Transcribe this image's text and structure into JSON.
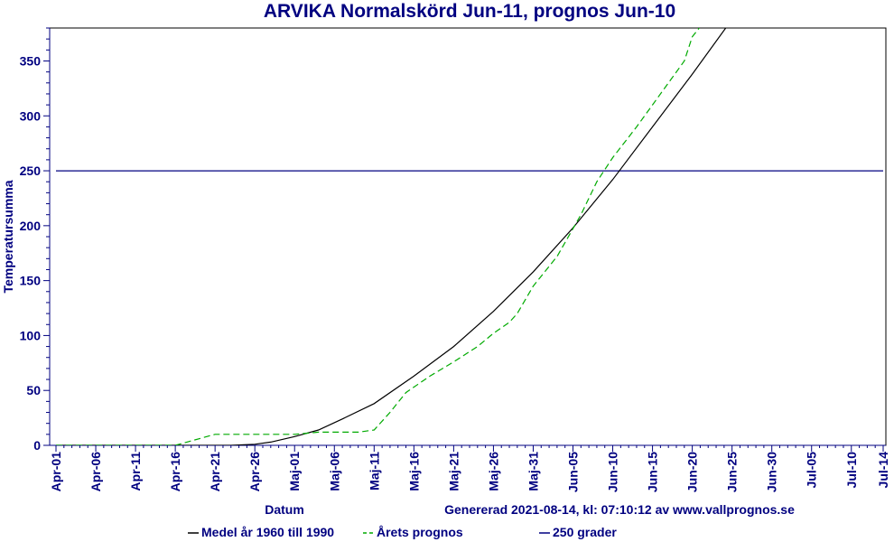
{
  "chart_data": {
    "type": "line",
    "title": "ARVIKA Normalskörd Jun-11, prognos Jun-10",
    "xlabel": "Datum",
    "ylabel": "Temperatursumma",
    "footer": "Genererad 2021-08-14, kl: 07:10:12 av www.vallprognos.se",
    "ylim": [
      0,
      380
    ],
    "xlim_days": [
      0,
      104
    ],
    "y_ticks": [
      0,
      50,
      100,
      150,
      200,
      250,
      300,
      350
    ],
    "x_ticks": [
      {
        "label": "Apr-01",
        "day": 0
      },
      {
        "label": "Apr-06",
        "day": 5
      },
      {
        "label": "Apr-11",
        "day": 10
      },
      {
        "label": "Apr-16",
        "day": 15
      },
      {
        "label": "Apr-21",
        "day": 20
      },
      {
        "label": "Apr-26",
        "day": 25
      },
      {
        "label": "Maj-01",
        "day": 30
      },
      {
        "label": "Maj-06",
        "day": 35
      },
      {
        "label": "Maj-11",
        "day": 40
      },
      {
        "label": "Maj-16",
        "day": 45
      },
      {
        "label": "Maj-21",
        "day": 50
      },
      {
        "label": "Maj-26",
        "day": 55
      },
      {
        "label": "Maj-31",
        "day": 60
      },
      {
        "label": "Jun-05",
        "day": 65
      },
      {
        "label": "Jun-10",
        "day": 70
      },
      {
        "label": "Jun-15",
        "day": 75
      },
      {
        "label": "Jun-20",
        "day": 80
      },
      {
        "label": "Jun-25",
        "day": 85
      },
      {
        "label": "Jun-30",
        "day": 90
      },
      {
        "label": "Jul-05",
        "day": 95
      },
      {
        "label": "Jul-10",
        "day": 100
      },
      {
        "label": "Jul-14",
        "day": 104
      }
    ],
    "series": [
      {
        "name": "Medel år 1960 till 1990",
        "color": "#000000",
        "dash": "solid",
        "points": [
          [
            0,
            0
          ],
          [
            20,
            0
          ],
          [
            22,
            0
          ],
          [
            25,
            1
          ],
          [
            27,
            3
          ],
          [
            30,
            8
          ],
          [
            33,
            14
          ],
          [
            36,
            24
          ],
          [
            40,
            38
          ],
          [
            45,
            63
          ],
          [
            50,
            90
          ],
          [
            55,
            122
          ],
          [
            60,
            158
          ],
          [
            65,
            198
          ],
          [
            70,
            242
          ],
          [
            75,
            290
          ],
          [
            80,
            338
          ],
          [
            85,
            388
          ]
        ]
      },
      {
        "name": "Årets prognos",
        "color": "#00aa00",
        "dash": "dashed",
        "points": [
          [
            0,
            0
          ],
          [
            15,
            0
          ],
          [
            17,
            4
          ],
          [
            20,
            10
          ],
          [
            25,
            10
          ],
          [
            30,
            10
          ],
          [
            33,
            12
          ],
          [
            38,
            12
          ],
          [
            40,
            14
          ],
          [
            42,
            30
          ],
          [
            44,
            48
          ],
          [
            47,
            63
          ],
          [
            50,
            76
          ],
          [
            53,
            90
          ],
          [
            55,
            102
          ],
          [
            57,
            112
          ],
          [
            58,
            120
          ],
          [
            60,
            145
          ],
          [
            63,
            172
          ],
          [
            66,
            210
          ],
          [
            68,
            240
          ],
          [
            70,
            262
          ],
          [
            73,
            290
          ],
          [
            75,
            310
          ],
          [
            77,
            330
          ],
          [
            79,
            350
          ],
          [
            80,
            372
          ],
          [
            82,
            390
          ]
        ]
      },
      {
        "name": "250 grader",
        "color": "#000080",
        "dash": "solid",
        "points": [
          [
            0,
            250
          ],
          [
            104,
            250
          ]
        ]
      }
    ],
    "legend_position": "bottom-center"
  }
}
